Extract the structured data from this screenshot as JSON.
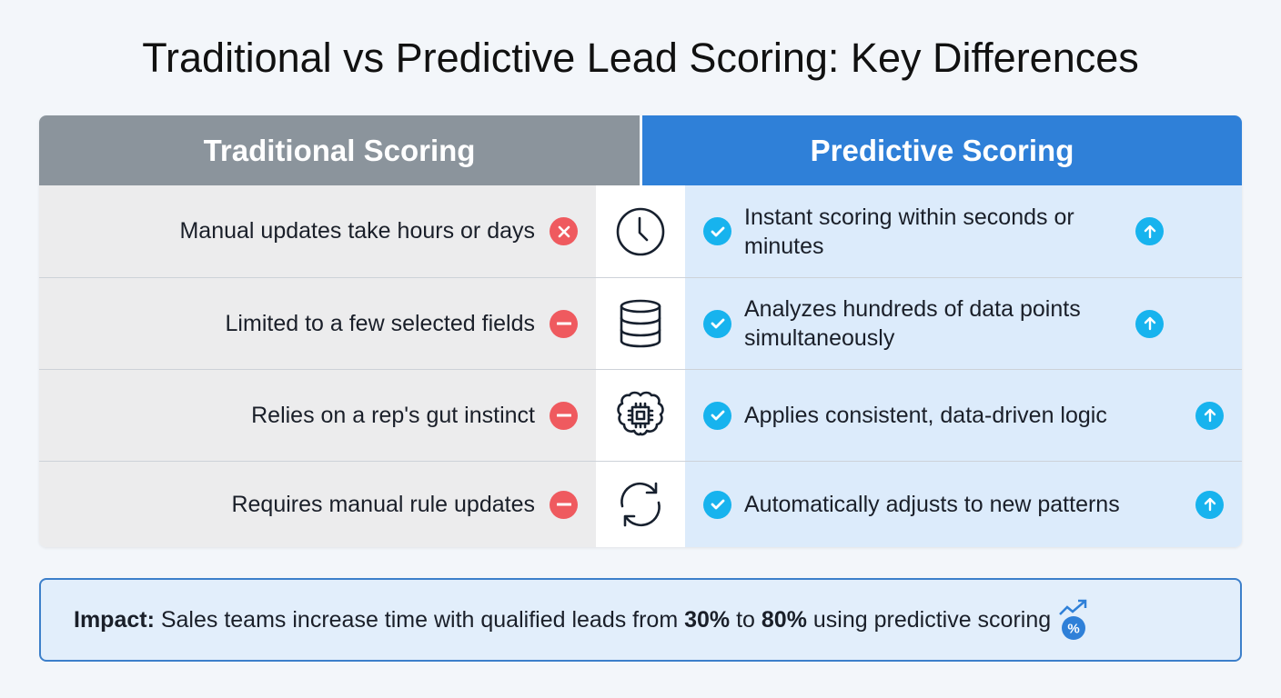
{
  "title": "Traditional vs Predictive Lead Scoring: Key Differences",
  "headers": {
    "traditional": "Traditional Scoring",
    "predictive": "Predictive Scoring"
  },
  "rows": [
    {
      "traditional": "Manual updates take hours or days",
      "traditional_icon": "x-circle-icon",
      "center_icon": "clock-icon",
      "predictive": "Instant scoring within seconds or minutes"
    },
    {
      "traditional": "Limited to a few selected fields",
      "traditional_icon": "minus-circle-icon",
      "center_icon": "database-icon",
      "predictive": "Analyzes hundreds of data points simultaneously"
    },
    {
      "traditional": "Relies on a rep's gut instinct",
      "traditional_icon": "minus-circle-icon",
      "center_icon": "brain-chip-icon",
      "predictive": "Applies consistent, data-driven logic"
    },
    {
      "traditional": "Requires manual rule updates",
      "traditional_icon": "minus-circle-icon",
      "center_icon": "refresh-icon",
      "predictive": "Automatically adjusts to new patterns"
    }
  ],
  "impact": {
    "label": "Impact:",
    "text1": " Sales teams increase time with qualified leads from ",
    "from": "30%",
    "mid": " to ",
    "to": "80%",
    "text2": " using predictive scoring",
    "icon": "trend-percent-icon"
  },
  "colors": {
    "traditional_header": "#8b949c",
    "predictive_header": "#2f80d8",
    "negative": "#ef5a5f",
    "positive": "#17b3ee",
    "impact_border": "#3c7fca"
  }
}
